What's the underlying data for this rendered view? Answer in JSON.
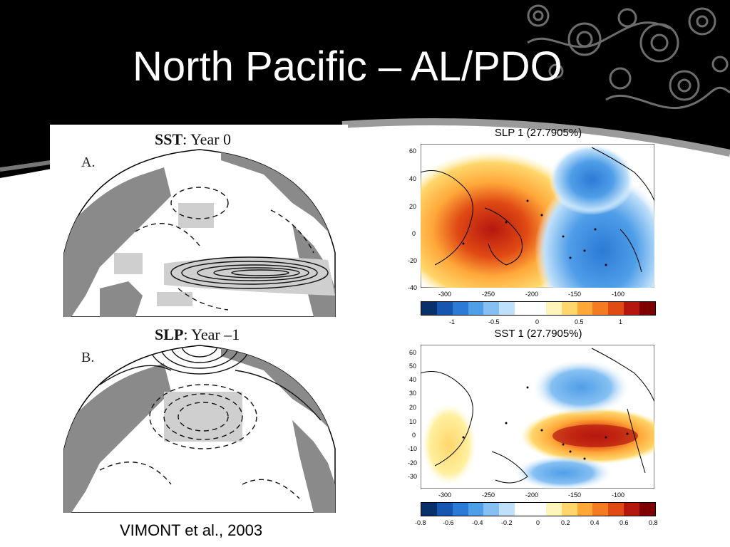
{
  "slide": {
    "title": "North Pacific – AL/PDO",
    "credit": "VIMONT et al., 2003"
  },
  "left_figure": {
    "panel_a": {
      "label": "A.",
      "var": "SST",
      "sep": ":",
      "period": "Year 0"
    },
    "panel_b": {
      "label": "B.",
      "var": "SLP",
      "sep": ":",
      "period": "Year –1"
    }
  },
  "right_figure": {
    "slp_map": {
      "title": "SLP 1 (27.7905%)",
      "y_ticks": [
        "60",
        "40",
        "20",
        "0",
        "-20",
        "-40"
      ],
      "x_ticks": [
        "-300",
        "-250",
        "-200",
        "-150",
        "-100"
      ],
      "colorbar_ticks": [
        "-1",
        "-0.5",
        "0",
        "0.5",
        "1"
      ]
    },
    "sst_map": {
      "title": "SST 1 (27.7905%)",
      "y_ticks": [
        "60",
        "50",
        "40",
        "30",
        "20",
        "10",
        "0",
        "-10",
        "-20",
        "-30"
      ],
      "x_ticks": [
        "-300",
        "-250",
        "-200",
        "-150",
        "-100"
      ],
      "colorbar_ticks": [
        "-0.8",
        "-0.6",
        "-0.4",
        "-0.2",
        "0",
        "0.2",
        "0.4",
        "0.6",
        "0.8"
      ]
    },
    "colorbar_colors": [
      "#08306b",
      "#1756b0",
      "#2b7ad6",
      "#4f9ee8",
      "#86c0f2",
      "#bfe0fa",
      "#ffffff",
      "#ffffff",
      "#fff5b8",
      "#ffd66b",
      "#ffa83a",
      "#f57b22",
      "#e04a14",
      "#b5170f",
      "#7f0000"
    ]
  }
}
